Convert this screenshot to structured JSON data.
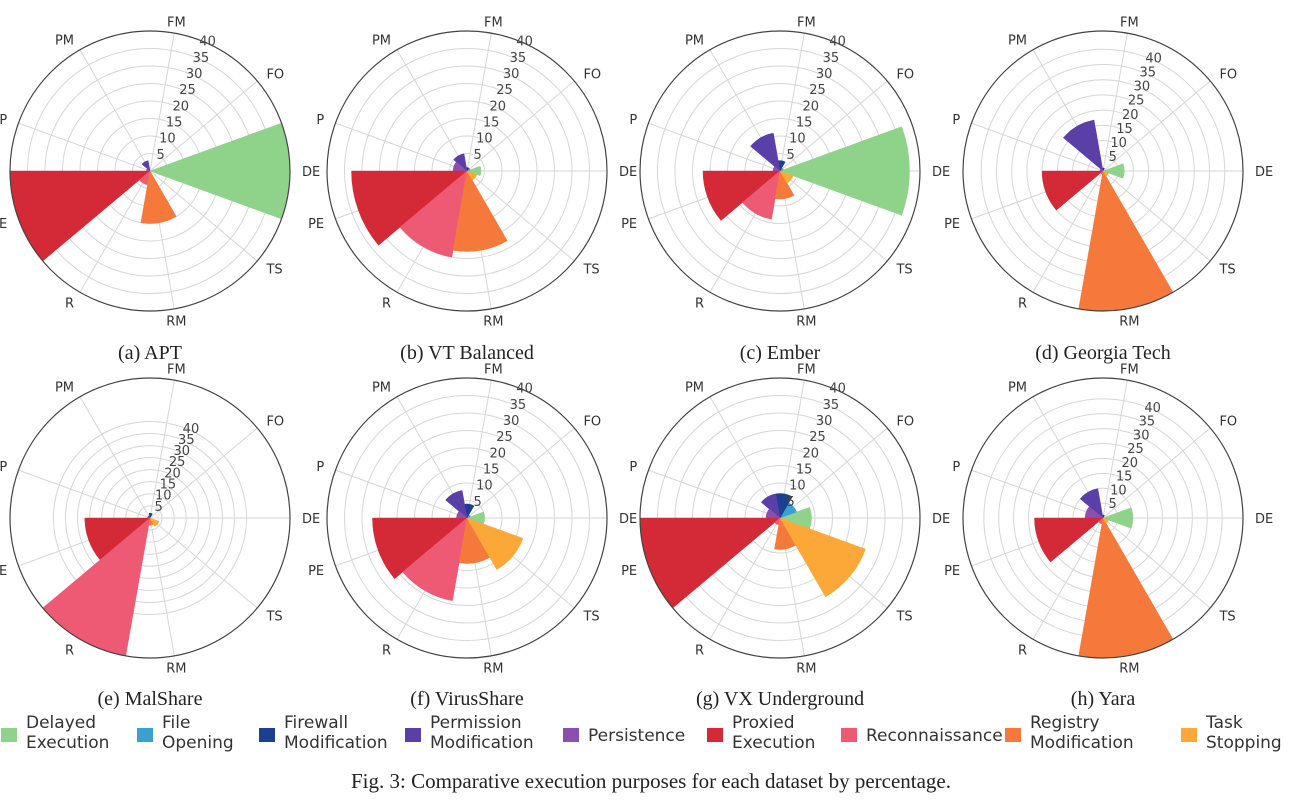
{
  "figure_caption": "Fig. 3: Comparative execution purposes for each dataset by percentage.",
  "legend": [
    {
      "lines": [
        "Delayed",
        "Execution"
      ],
      "color": "#8fd28a"
    },
    {
      "lines": [
        "File",
        "Opening"
      ],
      "color": "#3b9fcf"
    },
    {
      "lines": [
        "Firewall",
        "Modification"
      ],
      "color": "#1c3f8f"
    },
    {
      "lines": [
        "Permission",
        "Modification"
      ],
      "color": "#5b3fa8"
    },
    {
      "lines": [
        "Persistence"
      ],
      "color": "#8b4fb0"
    },
    {
      "lines": [
        "Proxied",
        "Execution"
      ],
      "color": "#d42a37"
    },
    {
      "lines": [
        "Reconnaissance"
      ],
      "color": "#ee5a74"
    },
    {
      "lines": [
        "Registry",
        "Modification"
      ],
      "color": "#f4793a"
    },
    {
      "lines": [
        "Task",
        "Stopping"
      ],
      "color": "#fca838"
    }
  ],
  "chart_data": [
    {
      "type": "polar-bar",
      "caption": "(a) APT",
      "directions": [
        "DE",
        "FO",
        "FM",
        "PM",
        "P",
        "PE",
        "R",
        "RM",
        "TS"
      ],
      "values": [
        40,
        0,
        0,
        3,
        1,
        40,
        4,
        15,
        0
      ],
      "rmax": 40,
      "ticks": [
        5,
        10,
        15,
        20,
        25,
        30,
        35,
        40
      ]
    },
    {
      "type": "polar-bar",
      "caption": "(b) VT Balanced",
      "directions": [
        "DE",
        "FO",
        "FM",
        "PM",
        "P",
        "PE",
        "R",
        "RM",
        "TS"
      ],
      "values": [
        4,
        1,
        1,
        5,
        4,
        33,
        25,
        23,
        3
      ],
      "rmax": 40,
      "ticks": [
        5,
        10,
        15,
        20,
        25,
        30,
        35,
        40
      ]
    },
    {
      "type": "polar-bar",
      "caption": "(c) Ember",
      "directions": [
        "DE",
        "FO",
        "FM",
        "PM",
        "P",
        "PE",
        "R",
        "RM",
        "TS"
      ],
      "values": [
        37,
        1,
        3,
        11,
        2,
        22,
        14,
        8,
        4
      ],
      "rmax": 40,
      "ticks": [
        5,
        10,
        15,
        20,
        25,
        30,
        35,
        40
      ]
    },
    {
      "type": "polar-bar",
      "caption": "(d) Georgia Tech",
      "directions": [
        "DE",
        "FO",
        "FM",
        "PM",
        "P",
        "PE",
        "R",
        "RM",
        "TS"
      ],
      "values": [
        7,
        0,
        1,
        17,
        1,
        20,
        1,
        46,
        2
      ],
      "rmax": 46,
      "ticks": [
        5,
        10,
        15,
        20,
        25,
        30,
        35,
        40
      ]
    },
    {
      "type": "polar-bar",
      "caption": "(e) MalShare",
      "directions": [
        "DE",
        "FO",
        "FM",
        "PM",
        "P",
        "PE",
        "R",
        "RM",
        "TS"
      ],
      "values": [
        0,
        0,
        2,
        1,
        1,
        27,
        58,
        3,
        4
      ],
      "rmax": 58,
      "ticks": [
        5,
        10,
        15,
        20,
        25,
        30,
        35,
        40
      ]
    },
    {
      "type": "polar-bar",
      "caption": "(f) VirusShare",
      "directions": [
        "DE",
        "FO",
        "FM",
        "PM",
        "P",
        "PE",
        "R",
        "RM",
        "TS"
      ],
      "values": [
        5,
        1,
        4,
        8,
        3,
        27,
        24,
        13,
        17
      ],
      "rmax": 40,
      "ticks": [
        5,
        10,
        15,
        20,
        25,
        30,
        35,
        40
      ]
    },
    {
      "type": "polar-bar",
      "caption": "(g) VX Underground",
      "directions": [
        "DE",
        "FO",
        "FM",
        "PM",
        "P",
        "PE",
        "R",
        "RM",
        "TS"
      ],
      "values": [
        9,
        5,
        7,
        7,
        4,
        40,
        2,
        9,
        26
      ],
      "rmax": 40,
      "ticks": [
        5,
        10,
        15,
        20,
        25,
        30,
        35,
        40
      ]
    },
    {
      "type": "polar-bar",
      "caption": "(h) Yara",
      "directions": [
        "DE",
        "FO",
        "FM",
        "PM",
        "P",
        "PE",
        "R",
        "RM",
        "TS"
      ],
      "values": [
        10,
        0,
        1,
        10,
        6,
        23,
        2,
        47,
        2
      ],
      "rmax": 47,
      "ticks": [
        5,
        10,
        15,
        20,
        25,
        30,
        35,
        40
      ]
    }
  ]
}
